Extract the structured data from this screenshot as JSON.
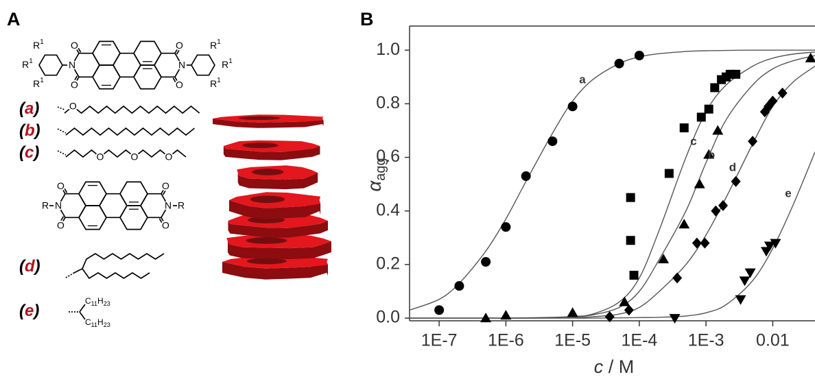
{
  "panel_a": {
    "label": "A",
    "atoms": {
      "N": "N",
      "O": "O",
      "R": "R",
      "R1": {
        "base": "R",
        "sup": "1"
      }
    },
    "compound_labels": [
      "a",
      "b",
      "c",
      "d",
      "e"
    ],
    "bracket_open": "(",
    "bracket_close": ")",
    "alkyl": [
      "C",
      "11",
      "H",
      "23"
    ]
  },
  "chart_data": {
    "type": "scatter",
    "label": "B",
    "xlabel": [
      "c",
      " / M"
    ],
    "ylabel": {
      "text": "α",
      "subscript": "agg"
    },
    "xscale": "log",
    "xlim": [
      3.6e-08,
      0.043
    ],
    "ylim": [
      -0.01,
      1.09
    ],
    "xticks": [
      {
        "value": 1e-07,
        "label": "1E-7"
      },
      {
        "value": 1e-06,
        "label": "1E-6"
      },
      {
        "value": 1e-05,
        "label": "1E-5"
      },
      {
        "value": 0.0001,
        "label": "1E-4"
      },
      {
        "value": 0.001,
        "label": "1E-3"
      },
      0.01
    ],
    "yticks": [
      {
        "value": 0,
        "label": "0.0"
      },
      0.2,
      0.4,
      0.6,
      0.8,
      {
        "value": 1,
        "label": "1.0"
      }
    ],
    "fit_color": "#555555",
    "fit_x": [
      3.6e-08,
      1e-07,
      2e-07,
      5e-07,
      1e-06,
      2e-06,
      5e-06,
      1e-05,
      2e-05,
      5e-05,
      0.0001,
      0.0002,
      0.0005,
      0.001,
      0.002,
      0.005,
      0.01,
      0.02,
      0.043
    ],
    "series": [
      {
        "name": "a",
        "marker": "circle",
        "color": "#000000",
        "x": [
          1e-07,
          2e-07,
          5e-07,
          1e-06,
          2e-06,
          5e-06,
          1e-05,
          5e-05,
          0.0001
        ],
        "values": [
          0.03,
          0.12,
          0.21,
          0.34,
          0.53,
          0.66,
          0.79,
          0.95,
          0.98
        ],
        "fit_values": [
          0.03,
          0.07,
          0.13,
          0.25,
          0.37,
          0.51,
          0.69,
          0.81,
          0.89,
          0.95,
          0.975,
          0.987,
          0.995,
          0.998,
          0.999,
          1.0,
          1.0,
          1.0,
          1.0
        ]
      },
      {
        "name": "b",
        "marker": "triangle",
        "color": "#000000",
        "x": [
          5e-07,
          1e-06,
          1e-05,
          6e-05,
          0.00023,
          0.00047,
          0.0008,
          0.0011,
          0.0015,
          0.037
        ],
        "values": [
          0.0,
          0.01,
          0.02,
          0.06,
          0.22,
          0.35,
          0.5,
          0.61,
          0.7,
          0.97
        ],
        "fit_values": [
          0,
          0,
          0,
          0,
          0,
          0,
          0.002,
          0.005,
          0.012,
          0.04,
          0.1,
          0.22,
          0.4,
          0.58,
          0.74,
          0.87,
          0.93,
          0.96,
          0.98
        ]
      },
      {
        "name": "c",
        "marker": "square",
        "color": "#000000",
        "x": [
          7.4e-05,
          7.4e-05,
          8.3e-05,
          0.00028,
          0.00047,
          0.00085,
          0.0011,
          0.00135,
          0.0017,
          0.002,
          0.0023,
          0.0028
        ],
        "values": [
          0.29,
          0.45,
          0.16,
          0.54,
          0.71,
          0.75,
          0.78,
          0.86,
          0.89,
          0.9,
          0.91,
          0.91
        ],
        "fit_values": [
          0,
          0,
          0,
          0,
          0,
          0.001,
          0.003,
          0.006,
          0.015,
          0.06,
          0.15,
          0.33,
          0.6,
          0.77,
          0.87,
          0.94,
          0.97,
          0.985,
          0.993
        ]
      },
      {
        "name": "d",
        "marker": "diamond",
        "color": "#000000",
        "x": [
          3.6e-05,
          7e-05,
          0.00037,
          0.00073,
          0.00096,
          0.0014,
          0.0018,
          0.0028,
          0.005,
          0.0076,
          0.0086,
          0.01,
          0.014
        ],
        "values": [
          0.005,
          0.03,
          0.15,
          0.28,
          0.28,
          0.4,
          0.42,
          0.51,
          0.66,
          0.77,
          0.79,
          0.81,
          0.84
        ],
        "fit_values": [
          0,
          0,
          0,
          0,
          0,
          0,
          0,
          0.002,
          0.005,
          0.015,
          0.04,
          0.1,
          0.2,
          0.31,
          0.45,
          0.65,
          0.79,
          0.88,
          0.94
        ]
      },
      {
        "name": "e",
        "marker": "triangle-down",
        "color": "#000000",
        "x": [
          0.00034,
          0.0033,
          0.0038,
          0.0046,
          0.008,
          0.009,
          0.011
        ],
        "values": [
          0.0,
          0.07,
          0.14,
          0.17,
          0.25,
          0.27,
          0.28
        ],
        "fit_values": [
          0,
          0,
          0,
          0,
          0,
          0,
          0,
          0,
          0,
          0.001,
          0.002,
          0.003,
          0.008,
          0.02,
          0.05,
          0.14,
          0.26,
          0.42,
          0.62
        ]
      }
    ]
  }
}
